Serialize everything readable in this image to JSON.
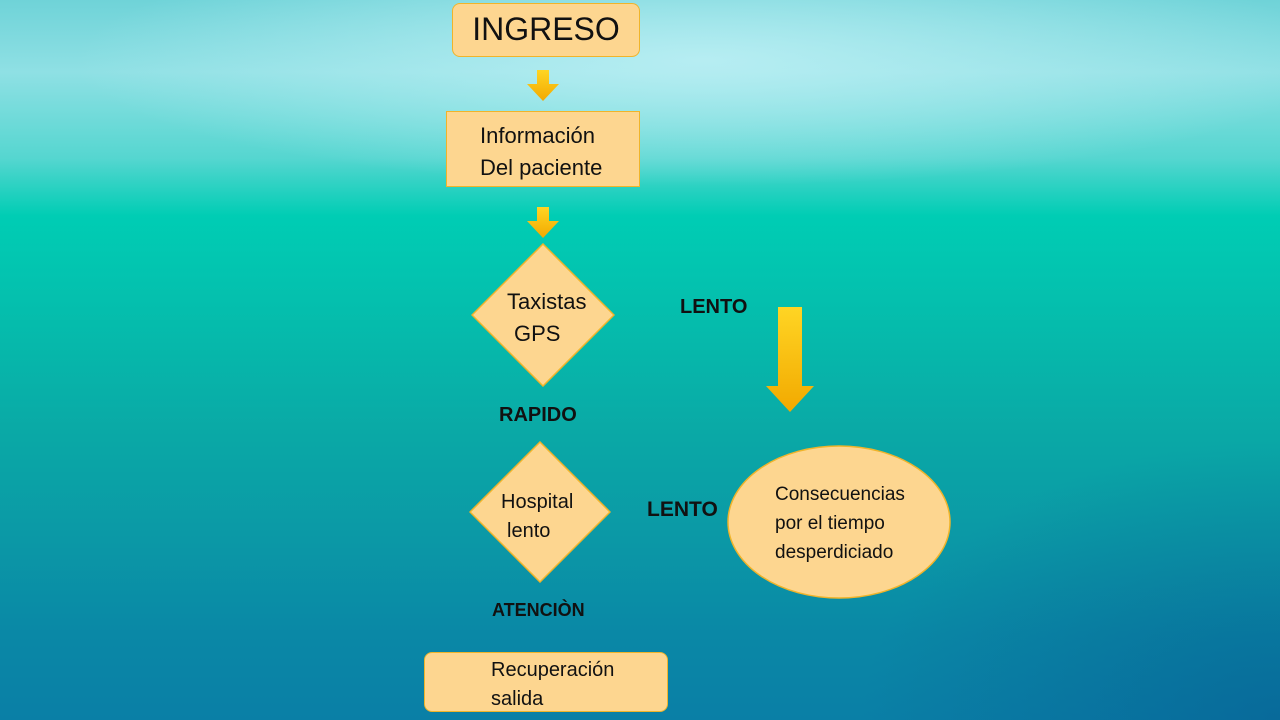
{
  "nodes": {
    "ingreso": "INGRESO",
    "informacion": [
      "Información",
      "Del  paciente"
    ],
    "taxistas": [
      "Taxistas",
      "GPS"
    ],
    "hospital": [
      "Hospital",
      "lento"
    ],
    "consecuencias": [
      "Consecuencias",
      "por el tiempo",
      "desperdiciado"
    ],
    "recuperacion": [
      "Recuperación",
      "salida"
    ]
  },
  "labels": {
    "lento_1": "LENTO",
    "rapido": "RAPIDO",
    "lento_2": "LENTO",
    "atencion": "ATENCIÒN"
  },
  "colors": {
    "box_fill": "#fdd690",
    "box_border": "#f0b42a",
    "arrow_top": "#ffd21f",
    "arrow_bottom": "#f0a800"
  }
}
